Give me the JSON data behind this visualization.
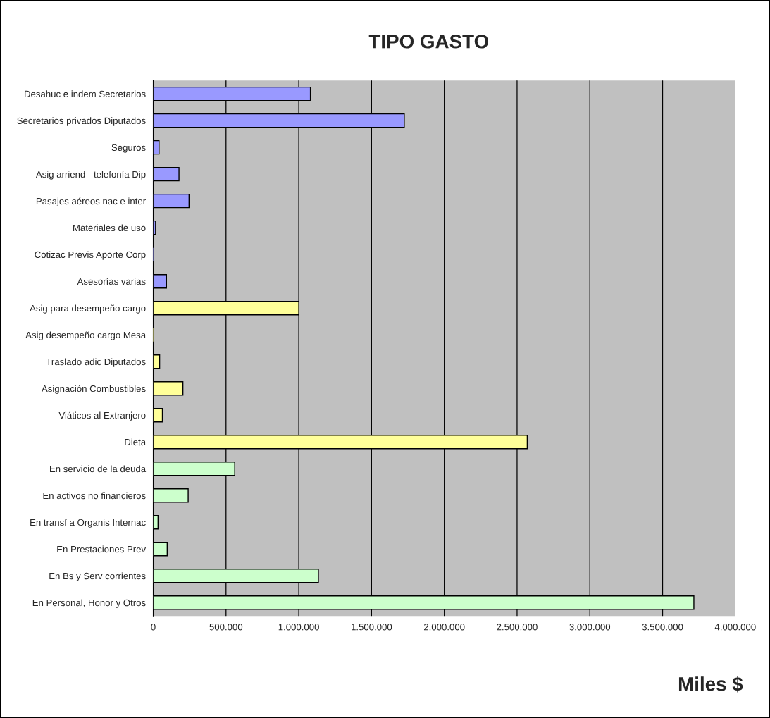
{
  "chart_data": {
    "type": "bar",
    "orientation": "horizontal",
    "title": "TIPO GASTO",
    "xlabel": "Miles $",
    "categories": [
      "Desahuc e indem Secretarios",
      "Secretarios privados Diputados",
      "Seguros",
      "Asig arriend - telefonía Dip",
      "Pasajes aéreos nac e inter",
      "Materiales de uso",
      "Cotizac Previs Aporte Corp",
      "Asesorías varias",
      "Asig para desempeño cargo",
      "Asig desempeño cargo Mesa",
      "Traslado adic Diputados",
      "Asignación Combustibles",
      "Viáticos al Extranjero",
      "Dieta",
      "En servicio de la deuda",
      "En activos no financieros",
      "En transf a Organis Internac",
      "En Prestaciones Prev",
      "En Bs y Serv corrientes",
      "En Personal, Honor y Otros"
    ],
    "values": [
      1080000,
      1725000,
      40000,
      177000,
      246000,
      16000,
      0,
      91000,
      1000000,
      0,
      44000,
      204000,
      63000,
      2570000,
      560000,
      240000,
      33000,
      96000,
      1135000,
      3715000
    ],
    "colors": [
      "#9999ff",
      "#9999ff",
      "#9999ff",
      "#9999ff",
      "#9999ff",
      "#9999ff",
      "#9999ff",
      "#9999ff",
      "#ffff99",
      "#ffff99",
      "#ffff99",
      "#ffff99",
      "#ffff99",
      "#ffff99",
      "#ccffcc",
      "#ccffcc",
      "#ccffcc",
      "#ccffcc",
      "#ccffcc",
      "#ccffcc"
    ],
    "xlim": [
      0,
      4000000
    ],
    "xticks": [
      0,
      {
        "value": 500000,
        "label": "500.000"
      },
      {
        "value": 1000000,
        "label": "1.000.000"
      },
      {
        "value": 1500000,
        "label": "1.500.000"
      },
      {
        "value": 2000000,
        "label": "2.000.000"
      },
      {
        "value": 2500000,
        "label": "2.500.000"
      },
      {
        "value": 3000000,
        "label": "3.000.000"
      },
      {
        "value": 3500000,
        "label": "3.500.000"
      },
      {
        "value": 4000000,
        "label": "4.000.000"
      }
    ],
    "grid": "x",
    "legend": false
  }
}
